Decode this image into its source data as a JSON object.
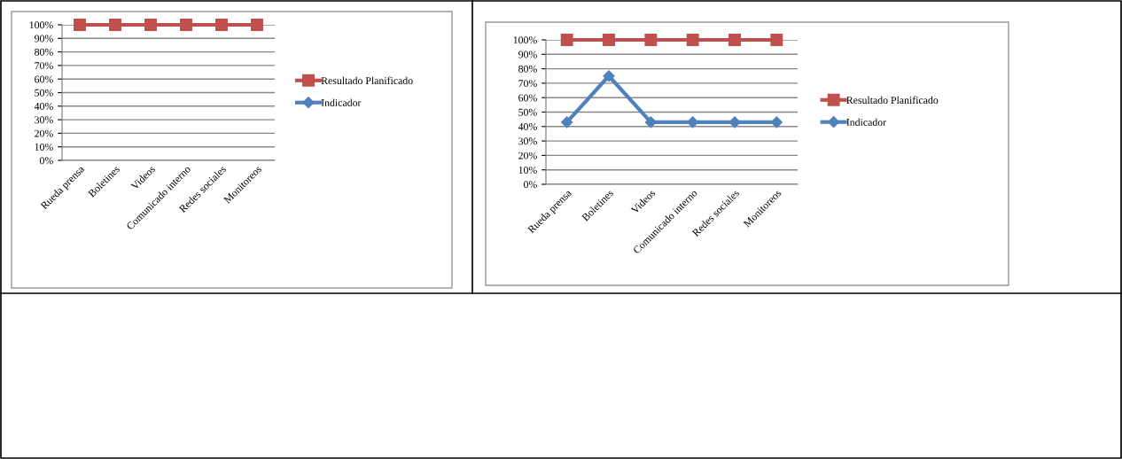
{
  "chart_data": [
    {
      "type": "line",
      "categories": [
        "Rueda prensa",
        "Boletines",
        "Videos",
        "Comunicado interno",
        "Redes sociales",
        "Monitoreos"
      ],
      "series": [
        {
          "name": "Resultado Planificado",
          "color": "#c0504d",
          "marker": "square",
          "values": [
            100,
            100,
            100,
            100,
            100,
            100
          ]
        },
        {
          "name": "Indicador",
          "color": "#4f81bd",
          "marker": "diamond",
          "values": [
            null,
            null,
            null,
            null,
            null,
            null
          ]
        }
      ],
      "ylim": [
        0,
        100
      ],
      "yticks": [
        {
          "value": 0,
          "label": "0%"
        },
        {
          "value": 10,
          "label": "10%"
        },
        {
          "value": 20,
          "label": "20%"
        },
        {
          "value": 30,
          "label": "30%"
        },
        {
          "value": 40,
          "label": "40%"
        },
        {
          "value": 50,
          "label": "50%"
        },
        {
          "value": 60,
          "label": "60%"
        },
        {
          "value": 70,
          "label": "70%"
        },
        {
          "value": 80,
          "label": "80%"
        },
        {
          "value": 90,
          "label": "90%"
        },
        {
          "value": 100,
          "label": "100%"
        }
      ],
      "grid": "y",
      "legend": "right"
    },
    {
      "type": "line",
      "categories": [
        "Rueda prensa",
        "Boletines",
        "Videos",
        "Comunicado interno",
        "Redes sociales",
        "Monitoreos"
      ],
      "series": [
        {
          "name": "Resultado Planificado",
          "color": "#c0504d",
          "marker": "square",
          "values": [
            100,
            100,
            100,
            100,
            100,
            100
          ]
        },
        {
          "name": "Indicador",
          "color": "#4f81bd",
          "marker": "diamond",
          "values": [
            43,
            75,
            43,
            43,
            43,
            43
          ]
        }
      ],
      "ylim": [
        0,
        100
      ],
      "yticks": [
        {
          "value": 0,
          "label": "0%"
        },
        {
          "value": 10,
          "label": "10%"
        },
        {
          "value": 20,
          "label": "20%"
        },
        {
          "value": 30,
          "label": "30%"
        },
        {
          "value": 40,
          "label": "40%"
        },
        {
          "value": 50,
          "label": "50%"
        },
        {
          "value": 60,
          "label": "60%"
        },
        {
          "value": 70,
          "label": "70%"
        },
        {
          "value": 80,
          "label": "80%"
        },
        {
          "value": 90,
          "label": "90%"
        },
        {
          "value": 100,
          "label": "100%"
        }
      ],
      "grid": "y",
      "legend": "right"
    }
  ]
}
